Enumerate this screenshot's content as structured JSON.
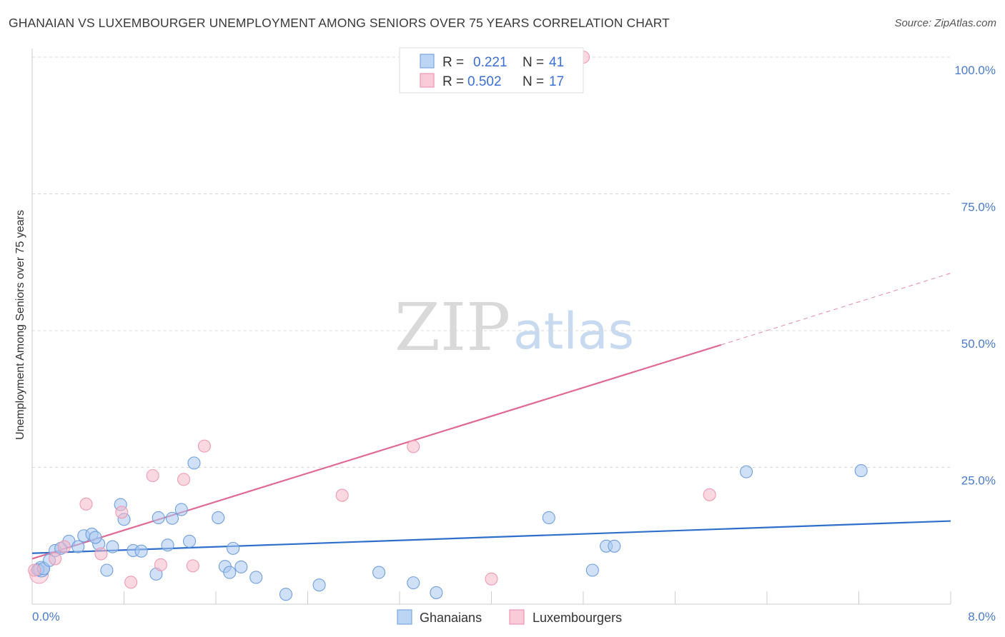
{
  "header": {
    "title": "GHANAIAN VS LUXEMBOURGER UNEMPLOYMENT AMONG SENIORS OVER 75 YEARS CORRELATION CHART",
    "source": "Source: ZipAtlas.com"
  },
  "watermark": {
    "zip": "ZIP",
    "atlas": "atlas"
  },
  "legend": {
    "rows": [
      {
        "r_label": "R = ",
        "r_value": "0.221",
        "n_label": "N = ",
        "n_value": "41"
      },
      {
        "r_label": "R = ",
        "r_value": "0.502",
        "n_label": "N = ",
        "n_value": "17"
      }
    ]
  },
  "colors": {
    "ghanaians": "#a9c8f0",
    "ghanaians_line": "#2f6fcc",
    "luxembourgers": "#f5b8c9",
    "luxembourgers_line": "#e06a92",
    "tick": "#4a7cc9"
  },
  "chart_data": {
    "type": "scatter",
    "title": "GHANAIAN VS LUXEMBOURGER UNEMPLOYMENT AMONG SENIORS OVER 75 YEARS CORRELATION CHART",
    "xlabel": "",
    "ylabel": "Unemployment Among Seniors over 75 years",
    "xlim": [
      0,
      8
    ],
    "ylim": [
      0,
      100
    ],
    "x_tick_labels": [
      "0.0%",
      "8.0%"
    ],
    "y_ticks": [
      25,
      50,
      75,
      100
    ],
    "y_tick_labels": [
      "25.0%",
      "50.0%",
      "75.0%",
      "100.0%"
    ],
    "grid": true,
    "series": [
      {
        "name": "Ghanaians",
        "points": [
          [
            0.05,
            6.3
          ],
          [
            0.1,
            6.5
          ],
          [
            0.15,
            8.0
          ],
          [
            0.2,
            9.8
          ],
          [
            0.25,
            10.2
          ],
          [
            0.32,
            11.5
          ],
          [
            0.45,
            12.5
          ],
          [
            0.52,
            12.8
          ],
          [
            0.58,
            11.0
          ],
          [
            0.65,
            6.2
          ],
          [
            0.7,
            10.5
          ],
          [
            0.77,
            18.2
          ],
          [
            0.8,
            15.5
          ],
          [
            0.88,
            9.8
          ],
          [
            0.95,
            9.7
          ],
          [
            1.08,
            5.5
          ],
          [
            1.1,
            15.8
          ],
          [
            1.18,
            10.8
          ],
          [
            1.22,
            15.7
          ],
          [
            1.3,
            17.3
          ],
          [
            1.37,
            11.5
          ],
          [
            1.41,
            25.8
          ],
          [
            1.62,
            15.8
          ],
          [
            1.68,
            6.9
          ],
          [
            1.72,
            5.8
          ],
          [
            1.75,
            10.2
          ],
          [
            1.82,
            6.8
          ],
          [
            1.95,
            4.9
          ],
          [
            2.21,
            1.8
          ],
          [
            2.5,
            3.5
          ],
          [
            3.02,
            5.8
          ],
          [
            3.32,
            3.9
          ],
          [
            3.52,
            2.1
          ],
          [
            4.5,
            15.8
          ],
          [
            4.88,
            6.2
          ],
          [
            5.0,
            10.6
          ],
          [
            5.07,
            10.6
          ],
          [
            6.22,
            24.2
          ],
          [
            7.22,
            24.4
          ],
          [
            0.4,
            10.5
          ],
          [
            0.55,
            12.2
          ]
        ]
      },
      {
        "name": "Luxembourgers",
        "points": [
          [
            0.02,
            6.2
          ],
          [
            0.2,
            8.3
          ],
          [
            0.28,
            10.5
          ],
          [
            0.47,
            18.3
          ],
          [
            0.6,
            9.2
          ],
          [
            0.78,
            16.8
          ],
          [
            0.86,
            4.0
          ],
          [
            1.05,
            23.5
          ],
          [
            1.12,
            7.2
          ],
          [
            1.32,
            22.8
          ],
          [
            1.4,
            7.0
          ],
          [
            1.5,
            28.9
          ],
          [
            2.7,
            19.9
          ],
          [
            3.32,
            28.8
          ],
          [
            4.0,
            4.6
          ],
          [
            4.8,
            100.0
          ],
          [
            5.9,
            20.0
          ]
        ]
      }
    ],
    "trendlines": [
      {
        "series": "Ghanaians",
        "x": [
          0,
          8
        ],
        "y": [
          9.3,
          15.2
        ],
        "style": "solid"
      },
      {
        "series": "Luxembourgers",
        "x": [
          0,
          6.0
        ],
        "y": [
          8.3,
          47.4
        ],
        "style": "solid"
      },
      {
        "series": "Luxembourgers",
        "x": [
          6.0,
          8
        ],
        "y": [
          47.4,
          60.5
        ],
        "style": "dashed"
      }
    ]
  },
  "bottom_legend": {
    "items": [
      "Ghanaians",
      "Luxembourgers"
    ]
  }
}
